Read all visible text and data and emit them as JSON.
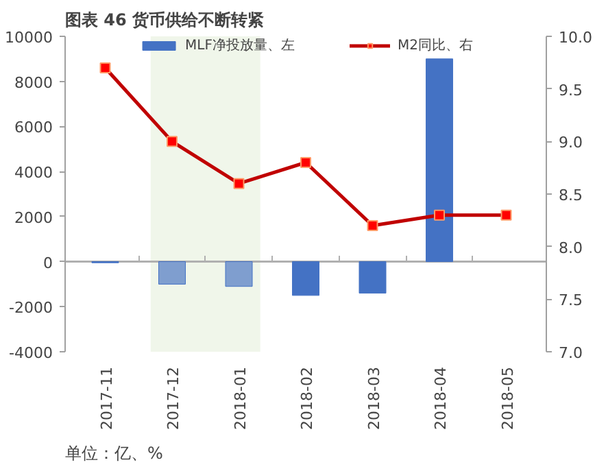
{
  "chart_data": {
    "type": "bar",
    "title": "图表 46  货币供给不断转紧",
    "categories": [
      "2017-11",
      "2017-12",
      "2018-01",
      "2018-02",
      "2018-03",
      "2018-04",
      "2018-05"
    ],
    "series": [
      {
        "name": "MLF净投放量、左",
        "color": "#4472c4",
        "colors": [
          "#4472c4",
          "#7f9ecf",
          "#7f9ecf",
          "#4472c4",
          "#4472c4",
          "#4472c4",
          "#4472c4"
        ],
        "values": [
          -50,
          -1000,
          -1100,
          -1500,
          -1400,
          9000,
          null
        ]
      },
      {
        "name": "M2同比、右",
        "type": "line",
        "axis": "y2",
        "color": "#c00000",
        "marker": "square",
        "values": [
          9.7,
          9.0,
          8.6,
          8.8,
          8.2,
          8.3,
          8.3
        ]
      }
    ],
    "ylim": [
      -4000,
      10000
    ],
    "yticks": [
      -4000,
      -2000,
      0,
      2000,
      4000,
      6000,
      8000,
      10000
    ],
    "y2lim": [
      7.0,
      10.0
    ],
    "y2ticks": [
      {
        "value": 7,
        "label": "7.0"
      },
      {
        "value": 7.5,
        "label": "7.5"
      },
      {
        "value": 8,
        "label": "8.0"
      },
      {
        "value": 8.5,
        "label": "8.5"
      },
      {
        "value": 9,
        "label": "9.0"
      },
      {
        "value": 9.5,
        "label": "9.5"
      },
      {
        "value": 10,
        "label": "10.0"
      }
    ],
    "bands": [
      {
        "axis": "x",
        "from": "2017-12",
        "to": "2018-01",
        "color": "#f0f6ea"
      }
    ],
    "ref_lines": [
      {
        "axis": "y",
        "value": 0,
        "color": "#b0b0b0"
      }
    ],
    "grid": false,
    "legend": "top",
    "annotations": [
      "单位：亿、%"
    ]
  }
}
